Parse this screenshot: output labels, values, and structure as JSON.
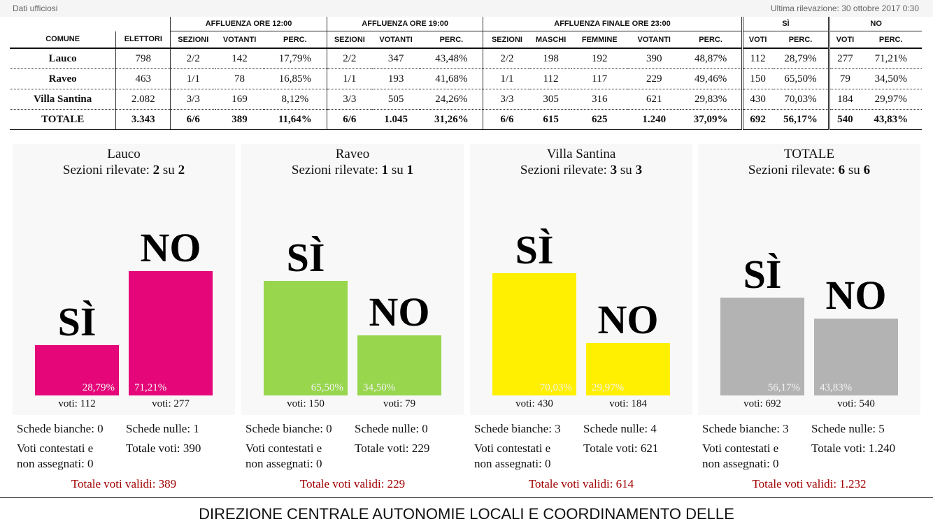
{
  "header": {
    "left": "Dati ufficiosi",
    "right": "Ultima rilevazione: 30 ottobre 2017 0:30"
  },
  "table": {
    "group_headers": {
      "h12": "AFFLUENZA ORE 12:00",
      "h19": "AFFLUENZA ORE 19:00",
      "h23": "AFFLUENZA FINALE ORE 23:00",
      "si": "SÌ",
      "no": "NO"
    },
    "columns": [
      "COMUNE",
      "ELETTORI",
      "SEZIONI",
      "VOTANTI",
      "PERC.",
      "SEZIONI",
      "VOTANTI",
      "PERC.",
      "SEZIONI",
      "MASCHI",
      "FEMMINE",
      "VOTANTI",
      "PERC.",
      "VOTI",
      "PERC.",
      "VOTI",
      "PERC."
    ],
    "rows": [
      [
        "Lauco",
        "798",
        "2/2",
        "142",
        "17,79%",
        "2/2",
        "347",
        "43,48%",
        "2/2",
        "198",
        "192",
        "390",
        "48,87%",
        "112",
        "28,79%",
        "277",
        "71,21%"
      ],
      [
        "Raveo",
        "463",
        "1/1",
        "78",
        "16,85%",
        "1/1",
        "193",
        "41,68%",
        "1/1",
        "112",
        "117",
        "229",
        "49,46%",
        "150",
        "65,50%",
        "79",
        "34,50%"
      ],
      [
        "Villa Santina",
        "2.082",
        "3/3",
        "169",
        "8,12%",
        "3/3",
        "505",
        "24,26%",
        "3/3",
        "305",
        "316",
        "621",
        "29,83%",
        "430",
        "70,03%",
        "184",
        "29,97%"
      ]
    ],
    "total": [
      "TOTALE",
      "3.343",
      "6/6",
      "389",
      "11,64%",
      "6/6",
      "1.045",
      "31,26%",
      "6/6",
      "615",
      "625",
      "1.240",
      "37,09%",
      "692",
      "56,17%",
      "540",
      "43,83%"
    ]
  },
  "chart_data": [
    {
      "type": "bar",
      "title": "Lauco",
      "sections_label": "Sezioni rilevate:",
      "sections_done": "2",
      "sections_sep": "su",
      "sections_total": "2",
      "categories": [
        "SÌ",
        "NO"
      ],
      "values": [
        28.79,
        71.21
      ],
      "value_labels": [
        "28,79%",
        "71,21%"
      ],
      "votes": [
        "voti: 112",
        "voti: 277"
      ],
      "color": "#e5077a",
      "schede_bianche": "Schede bianche: 0",
      "schede_nulle": "Schede nulle: 1",
      "contestati_1": "Voti contestati e",
      "contestati_2": "non assegnati: 0",
      "totale_voti": "Totale voti: 390",
      "validi": "Totale voti validi: 389"
    },
    {
      "type": "bar",
      "title": "Raveo",
      "sections_label": "Sezioni rilevate:",
      "sections_done": "1",
      "sections_sep": "su",
      "sections_total": "1",
      "categories": [
        "SÌ",
        "NO"
      ],
      "values": [
        65.5,
        34.5
      ],
      "value_labels": [
        "65,50%",
        "34,50%"
      ],
      "votes": [
        "voti: 150",
        "voti: 79"
      ],
      "color": "#98d64e",
      "schede_bianche": "Schede bianche: 0",
      "schede_nulle": "Schede nulle: 0",
      "contestati_1": "Voti contestati e",
      "contestati_2": "non assegnati: 0",
      "totale_voti": "Totale voti: 229",
      "validi": "Totale voti validi: 229"
    },
    {
      "type": "bar",
      "title": "Villa Santina",
      "sections_label": "Sezioni rilevate:",
      "sections_done": "3",
      "sections_sep": "su",
      "sections_total": "3",
      "categories": [
        "SÌ",
        "NO"
      ],
      "values": [
        70.03,
        29.97
      ],
      "value_labels": [
        "70,03%",
        "29,97%"
      ],
      "votes": [
        "voti: 430",
        "voti: 184"
      ],
      "color": "#ffef00",
      "schede_bianche": "Schede bianche: 3",
      "schede_nulle": "Schede nulle: 4",
      "contestati_1": "Voti contestati e",
      "contestati_2": "non assegnati: 0",
      "totale_voti": "Totale voti: 621",
      "validi": "Totale voti validi: 614"
    },
    {
      "type": "bar",
      "title": "TOTALE",
      "sections_label": "Sezioni rilevate:",
      "sections_done": "6",
      "sections_sep": "su",
      "sections_total": "6",
      "categories": [
        "SÌ",
        "NO"
      ],
      "values": [
        56.17,
        43.83
      ],
      "value_labels": [
        "56,17%",
        "43,83%"
      ],
      "votes": [
        "voti: 692",
        "voti: 540"
      ],
      "color": "#b3b3b3",
      "schede_bianche": "Schede bianche: 3",
      "schede_nulle": "Schede nulle: 5",
      "contestati_1": "Voti contestati e",
      "contestati_2": "non assegnati: 0",
      "totale_voti": "Totale voti: 1.240",
      "validi": "Totale voti validi: 1.232"
    }
  ],
  "footer": {
    "text": "DIREZIONE CENTRALE AUTONOMIE LOCALI E COORDINAMENTO DELLE"
  }
}
